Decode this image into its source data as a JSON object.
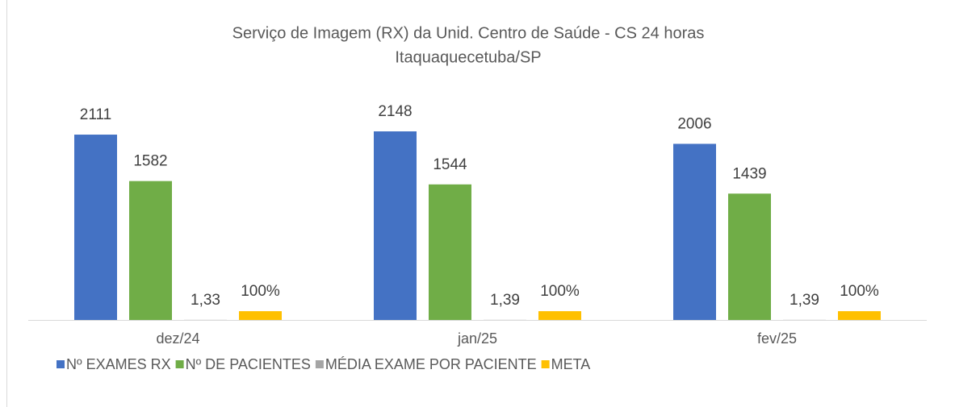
{
  "chart_data": {
    "type": "bar",
    "title": "Serviço de Imagem (RX) da Unid. Centro de Saúde - CS 24 horas",
    "subtitle": "Itaquaquecetuba/SP",
    "categories": [
      "dez/24",
      "jan/25",
      "fev/25"
    ],
    "series": [
      {
        "name": "Nº EXAMES RX",
        "color": "#4472c4",
        "values": [
          2111,
          2148,
          2006
        ]
      },
      {
        "name": "Nº DE PACIENTES",
        "color": "#70ad47",
        "values": [
          1582,
          1544,
          1439
        ]
      },
      {
        "name": "MÉDIA EXAME POR PACIENTE",
        "color": "#a5a5a5",
        "values": [
          1.33,
          1.39,
          1.39
        ],
        "value_labels": [
          "1,33",
          "1,39",
          "1,39"
        ]
      },
      {
        "name": "META",
        "color": "#ffc000",
        "values": [
          100,
          100,
          100
        ],
        "value_labels": [
          "100%",
          "100%",
          "100%"
        ]
      }
    ],
    "legend": "bottom"
  }
}
